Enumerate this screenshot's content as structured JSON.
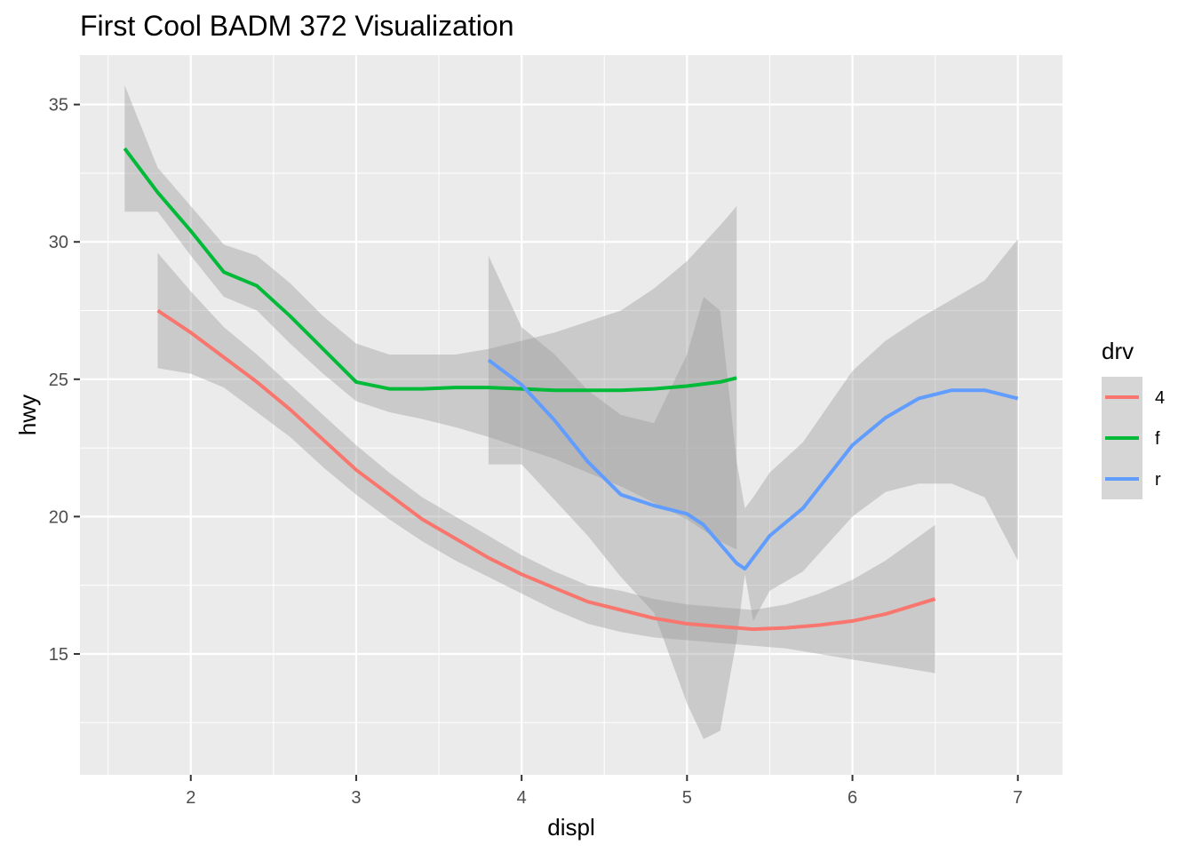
{
  "chart_data": {
    "type": "line",
    "title": "First Cool BADM 372 Visualization",
    "xlabel": "displ",
    "ylabel": "hwy",
    "xlim": [
      1.33,
      7.27
    ],
    "ylim": [
      10.6,
      36.8
    ],
    "x_ticks": [
      "2",
      "3",
      "4",
      "5",
      "6",
      "7"
    ],
    "y_ticks": [
      "15",
      "20",
      "25",
      "30",
      "35"
    ],
    "x_tick_values": [
      2,
      3,
      4,
      5,
      6,
      7
    ],
    "y_tick_values": [
      15,
      20,
      25,
      30,
      35
    ],
    "grid": true,
    "panel_background": "#ebebeb",
    "ribbon_color": "#999999",
    "legend": {
      "title": "drv",
      "position": "right"
    },
    "series": [
      {
        "name": "4",
        "color": "#F8766D",
        "x": [
          1.8,
          2.0,
          2.2,
          2.4,
          2.6,
          2.8,
          3.0,
          3.2,
          3.4,
          3.6,
          3.8,
          4.0,
          4.2,
          4.4,
          4.6,
          4.8,
          5.0,
          5.2,
          5.4,
          5.6,
          5.8,
          6.0,
          6.2,
          6.5
        ],
        "y": [
          27.5,
          26.7,
          25.8,
          24.9,
          23.9,
          22.8,
          21.7,
          20.8,
          19.9,
          19.2,
          18.5,
          17.9,
          17.4,
          16.9,
          16.6,
          16.3,
          16.1,
          16.0,
          15.9,
          15.95,
          16.05,
          16.2,
          16.45,
          17.0
        ],
        "lower": [
          25.4,
          25.2,
          24.7,
          23.8,
          22.9,
          21.8,
          20.8,
          19.9,
          19.1,
          18.4,
          17.8,
          17.2,
          16.6,
          16.1,
          15.8,
          15.6,
          15.5,
          15.4,
          15.3,
          15.2,
          15.0,
          14.8,
          14.6,
          14.3
        ],
        "upper": [
          29.6,
          28.2,
          26.9,
          25.9,
          24.8,
          23.7,
          22.6,
          21.6,
          20.7,
          20.0,
          19.3,
          18.6,
          18.0,
          17.5,
          17.3,
          17.0,
          16.8,
          16.7,
          16.6,
          16.8,
          17.2,
          17.7,
          18.4,
          19.7
        ]
      },
      {
        "name": "f",
        "color": "#00BA38",
        "x": [
          1.6,
          1.8,
          2.0,
          2.2,
          2.4,
          2.6,
          2.8,
          3.0,
          3.2,
          3.4,
          3.6,
          3.8,
          4.0,
          4.2,
          4.4,
          4.6,
          4.8,
          5.0,
          5.2,
          5.3
        ],
        "y": [
          33.4,
          31.8,
          30.4,
          28.9,
          28.4,
          27.3,
          26.1,
          24.9,
          24.65,
          24.65,
          24.7,
          24.7,
          24.65,
          24.6,
          24.6,
          24.6,
          24.65,
          24.75,
          24.9,
          25.05
        ],
        "lower": [
          31.1,
          31.1,
          29.5,
          28.0,
          27.5,
          26.3,
          25.2,
          24.2,
          23.8,
          23.55,
          23.25,
          22.9,
          22.5,
          22.1,
          21.6,
          21.1,
          20.5,
          19.9,
          19.1,
          18.8
        ],
        "upper": [
          35.7,
          32.7,
          31.3,
          29.9,
          29.5,
          28.5,
          27.3,
          26.3,
          25.9,
          25.9,
          25.9,
          26.1,
          26.4,
          26.7,
          27.1,
          27.5,
          28.3,
          29.3,
          30.6,
          31.3
        ]
      },
      {
        "name": "r",
        "color": "#619CFF",
        "x": [
          3.8,
          4.0,
          4.2,
          4.4,
          4.6,
          4.8,
          5.0,
          5.1,
          5.2,
          5.3,
          5.35,
          5.4,
          5.5,
          5.7,
          6.0,
          6.2,
          6.4,
          6.6,
          6.8,
          7.0
        ],
        "y": [
          25.7,
          24.8,
          23.5,
          22.0,
          20.8,
          20.4,
          20.1,
          19.7,
          19.0,
          18.3,
          18.1,
          18.5,
          19.3,
          20.3,
          22.6,
          23.6,
          24.3,
          24.6,
          24.6,
          24.3
        ],
        "lower": [
          21.9,
          21.9,
          20.6,
          19.3,
          17.8,
          16.5,
          13.2,
          11.9,
          12.2,
          15.5,
          17.9,
          16.2,
          17.3,
          18.0,
          20.0,
          20.9,
          21.2,
          21.2,
          20.7,
          18.4
        ],
        "upper": [
          29.5,
          26.9,
          25.9,
          24.6,
          23.7,
          23.4,
          25.9,
          28.0,
          27.5,
          22.0,
          20.3,
          20.7,
          21.6,
          22.7,
          25.3,
          26.4,
          27.2,
          27.9,
          28.6,
          30.1
        ]
      }
    ]
  }
}
